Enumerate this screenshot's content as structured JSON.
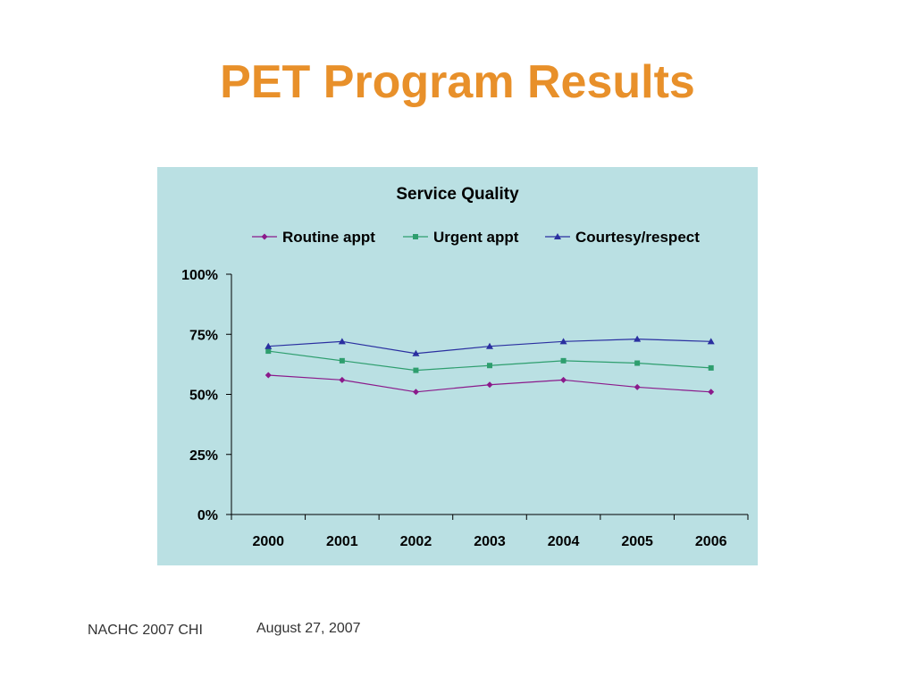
{
  "slide": {
    "title": "PET Program Results",
    "title_color": "#E8902A",
    "footer_left": "NACHC 2007 CHI",
    "footer_right": "August 27, 2007"
  },
  "colors": {
    "chart_background": "#BAE0E3",
    "axis": "#000000"
  },
  "chart_data": {
    "type": "line",
    "title": "Service Quality",
    "categories": [
      "2000",
      "2001",
      "2002",
      "2003",
      "2004",
      "2005",
      "2006"
    ],
    "series": [
      {
        "name": "Routine appt",
        "values": [
          0.58,
          0.56,
          0.51,
          0.54,
          0.56,
          0.53,
          0.51
        ],
        "color": "#8B1A8B",
        "marker": "diamond"
      },
      {
        "name": "Urgent appt",
        "values": [
          0.68,
          0.64,
          0.6,
          0.62,
          0.64,
          0.63,
          0.61
        ],
        "color": "#2E9E6E",
        "marker": "square"
      },
      {
        "name": "Courtesy/respect",
        "values": [
          0.7,
          0.72,
          0.67,
          0.7,
          0.72,
          0.73,
          0.72
        ],
        "color": "#2A2FA0",
        "marker": "triangle"
      }
    ],
    "y_ticks": [
      "0%",
      "25%",
      "50%",
      "75%",
      "100%"
    ],
    "ylim": [
      0,
      1
    ],
    "legend_position": "top",
    "grid": false
  }
}
